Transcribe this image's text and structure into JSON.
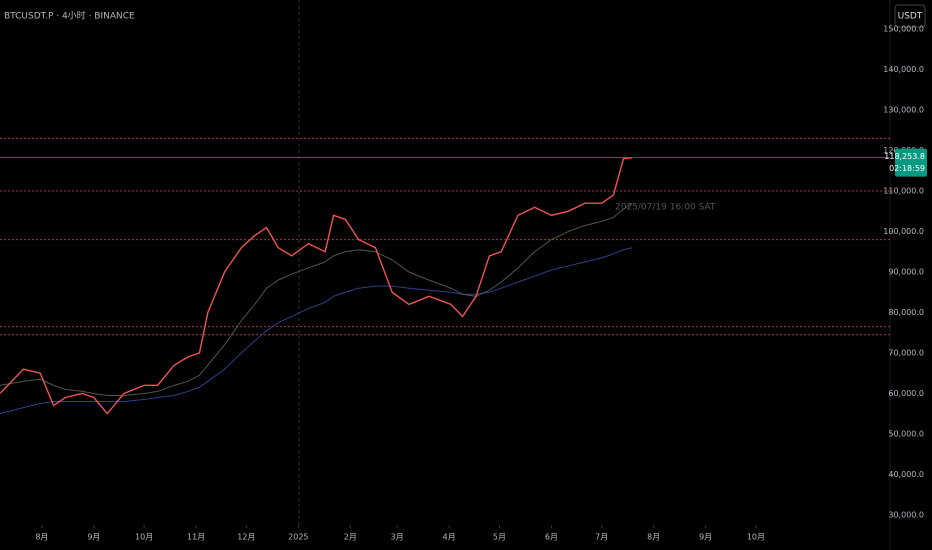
{
  "header": {
    "symbol": "BTCUSDT.P · 4小时 · BINANCE",
    "currency_button": "USDT"
  },
  "chart_data": {
    "type": "line",
    "annotation": "2025/07/19 16:00 SAT",
    "x": [
      6,
      20,
      30,
      38,
      45,
      55,
      62,
      70,
      80,
      92,
      100,
      110,
      118,
      125,
      130,
      140,
      150,
      158,
      165,
      172,
      180,
      190,
      200,
      205,
      212,
      220,
      230,
      240,
      250,
      262,
      275,
      282,
      290,
      298,
      305,
      315,
      325,
      335,
      345,
      355,
      365,
      372,
      378,
      383
    ],
    "series": [
      {
        "color": "#ef5350",
        "values": [
          60000,
          66000,
          65000,
          57000,
          59000,
          60000,
          59000,
          55000,
          60000,
          62000,
          62000,
          67000,
          69000,
          70000,
          80000,
          90000,
          96000,
          99000,
          101000,
          96000,
          94000,
          97000,
          95000,
          104000,
          103000,
          98000,
          96000,
          85000,
          82000,
          84000,
          82000,
          79000,
          84000,
          94000,
          95000,
          104000,
          106000,
          104000,
          105000,
          107000,
          107000,
          109000,
          118000,
          118253.8
        ]
      },
      {
        "color": "#4a5a4a",
        "values": [
          62000,
          63000,
          63500,
          62000,
          61000,
          60500,
          60000,
          59500,
          59500,
          60000,
          60500,
          62000,
          63000,
          64500,
          67000,
          72000,
          78000,
          82000,
          86000,
          88000,
          89500,
          91000,
          92500,
          94000,
          95000,
          95500,
          95000,
          93000,
          90000,
          88000,
          86000,
          84500,
          84000,
          85500,
          87500,
          91000,
          95000,
          98000,
          100000,
          101500,
          102500,
          103500,
          105500,
          107000
        ]
      },
      {
        "color": "#2f3f88",
        "values": [
          55000,
          56500,
          57500,
          58000,
          58000,
          58000,
          58000,
          58000,
          58000,
          58500,
          59000,
          59500,
          60500,
          61500,
          63000,
          66000,
          70000,
          73000,
          75500,
          77500,
          79000,
          81000,
          82500,
          84000,
          85000,
          86000,
          86500,
          86500,
          86000,
          85500,
          85000,
          84500,
          84500,
          85000,
          86000,
          87500,
          89000,
          90500,
          91500,
          92500,
          93500,
          94500,
          95500,
          96000
        ]
      }
    ],
    "xlim": [
      6,
      537
    ],
    "xticks": [
      {
        "value": 31,
        "label": "8月"
      },
      {
        "value": 62,
        "label": "9月"
      },
      {
        "value": 92,
        "label": "10月"
      },
      {
        "value": 123,
        "label": "11月"
      },
      {
        "value": 153,
        "label": "12月"
      },
      {
        "value": 184,
        "label": "2025"
      },
      {
        "value": 215,
        "label": "2月"
      },
      {
        "value": 243,
        "label": "3月"
      },
      {
        "value": 274,
        "label": "4月"
      },
      {
        "value": 304,
        "label": "5月"
      },
      {
        "value": 335,
        "label": "6月"
      },
      {
        "value": 365,
        "label": "7月"
      },
      {
        "value": 396,
        "label": "8月"
      },
      {
        "value": 427,
        "label": "9月"
      },
      {
        "value": 457,
        "label": "10月"
      }
    ],
    "ylim": [
      27500,
      157200
    ],
    "yticks": [
      {
        "value": 30000,
        "label": "30,000.0"
      },
      {
        "value": 40000,
        "label": "40,000.0"
      },
      {
        "value": 50000,
        "label": "50,000.0"
      },
      {
        "value": 60000,
        "label": "60,000.0"
      },
      {
        "value": 70000,
        "label": "70,000.0"
      },
      {
        "value": 80000,
        "label": "80,000.0"
      },
      {
        "value": 90000,
        "label": "90,000.0"
      },
      {
        "value": 100000,
        "label": "100,000.0"
      },
      {
        "value": 110000,
        "label": "110,000.0"
      },
      {
        "value": 120000,
        "label": "120,000.0"
      },
      {
        "value": 130000,
        "label": "130,000.0"
      },
      {
        "value": 140000,
        "label": "140,000.0"
      },
      {
        "value": 150000,
        "label": "150,000.0"
      }
    ],
    "hlines": [
      {
        "value": 123000,
        "color": "#b2343a"
      },
      {
        "value": 110000,
        "color": "#b2343a"
      },
      {
        "value": 98000,
        "color": "#b2343a"
      },
      {
        "value": 76500,
        "color": "#b2343a"
      },
      {
        "value": 74500,
        "color": "#b2343a"
      }
    ],
    "last_price": {
      "value": 118253.8,
      "label": "118,253.8",
      "color": "#089981"
    },
    "countdown": "02:18:59"
  }
}
